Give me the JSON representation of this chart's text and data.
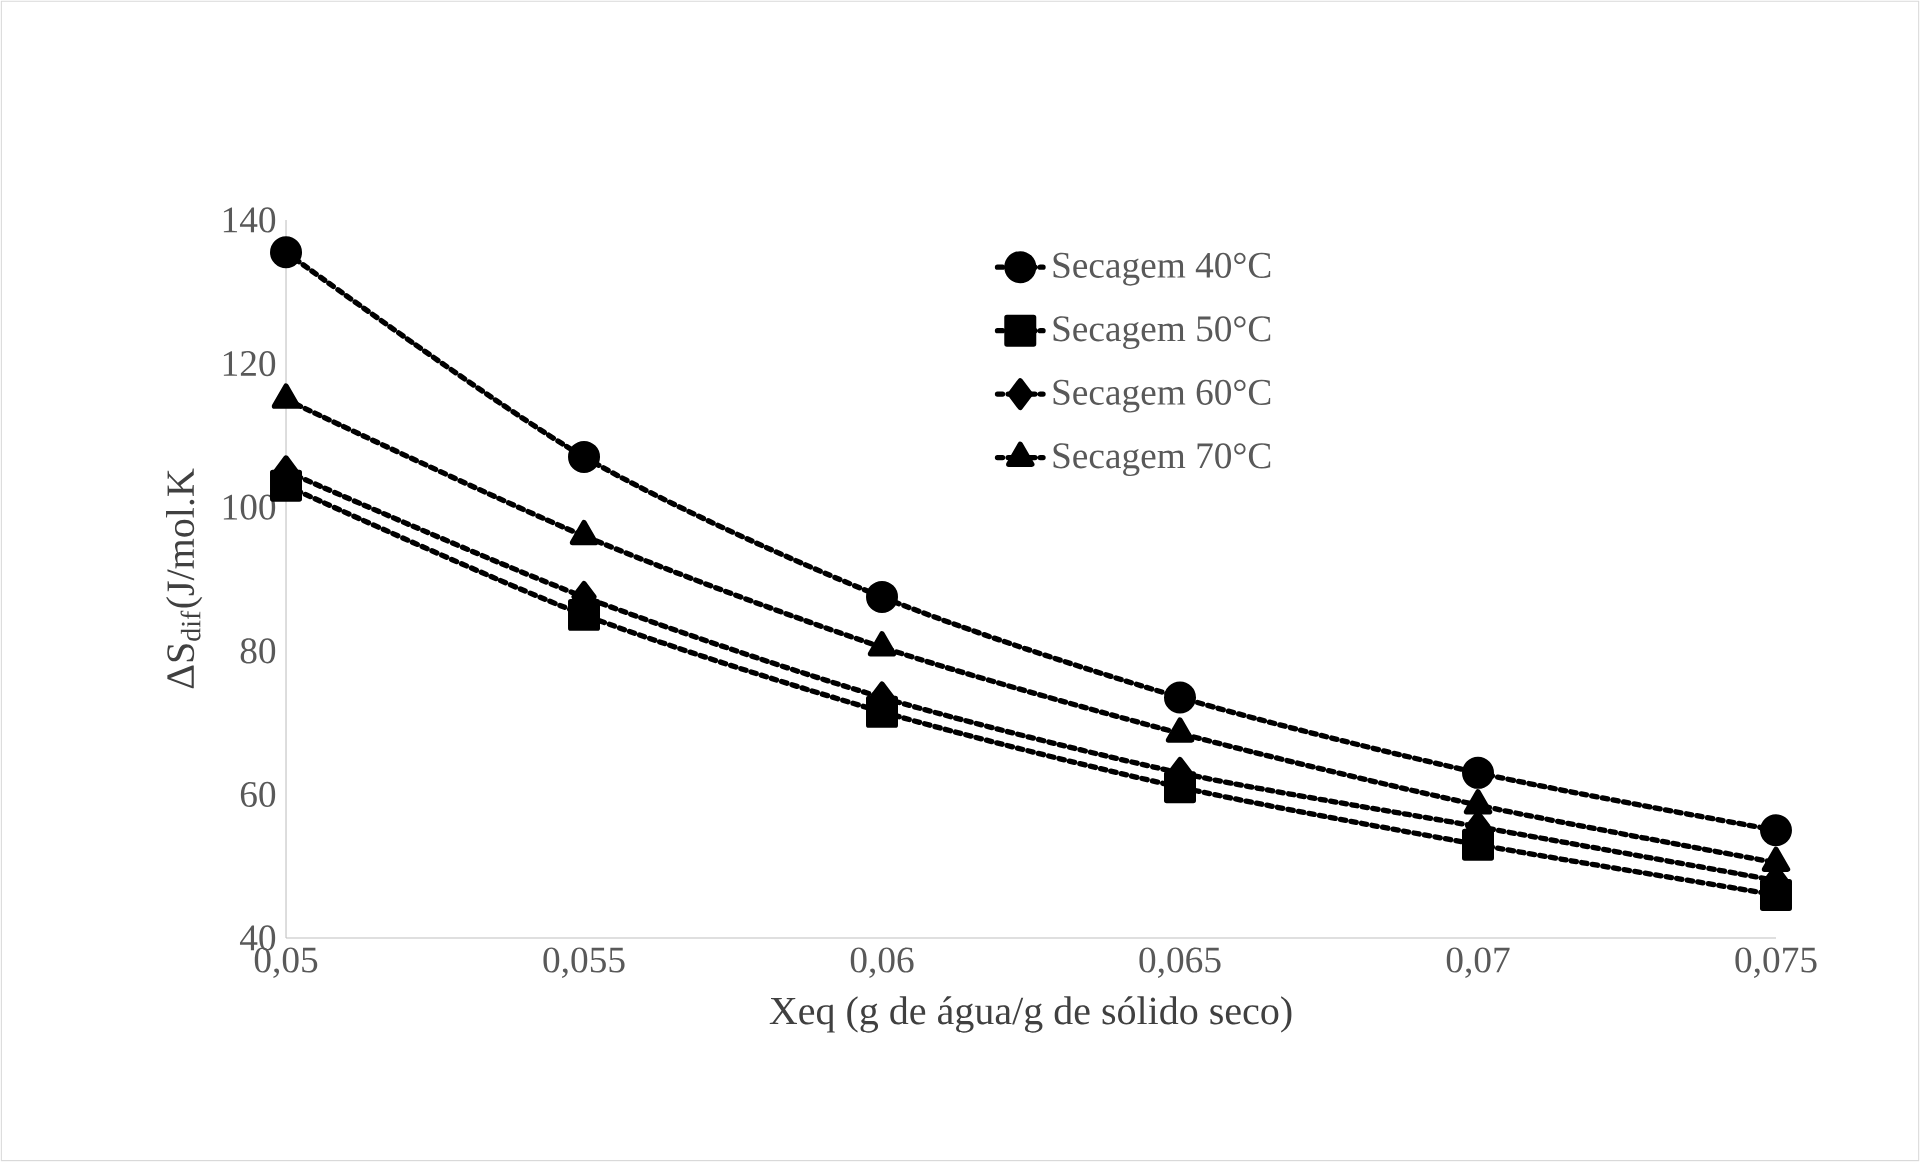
{
  "chart_data": {
    "type": "line",
    "xlabel": "Xeq (g de água/g de sólido seco)",
    "ylabel": "ΔS$_{dif}$(J/mol.K",
    "x": [
      0.05,
      0.055,
      0.06,
      0.065,
      0.07,
      0.075
    ],
    "series": [
      {
        "name": "Secagem 40°C",
        "color": "#000000",
        "marker": "circle",
        "values": [
          135.5,
          107,
          87.5,
          73.5,
          63,
          55
        ]
      },
      {
        "name": "Secagem 50°C",
        "color": "#000000",
        "marker": "square",
        "values": [
          103,
          85,
          71.5,
          61,
          53,
          46
        ]
      },
      {
        "name": "Secagem 60°C",
        "color": "#000000",
        "marker": "diamond",
        "values": [
          105,
          87.5,
          73.5,
          63,
          55.5,
          48
        ]
      },
      {
        "name": "Secagem 70°C",
        "color": "#000000",
        "marker": "triangle",
        "values": [
          115,
          96,
          80.5,
          68.5,
          58.5,
          50.5
        ]
      }
    ],
    "xlim": [
      0.05,
      0.075
    ],
    "xticks": [
      {
        "value": 0.05,
        "label": "0,05"
      },
      {
        "value": 0.055,
        "label": "0,055"
      },
      {
        "value": 0.06,
        "label": "0,06"
      },
      {
        "value": 0.065,
        "label": "0,065"
      },
      {
        "value": 0.07,
        "label": "0,07"
      },
      {
        "value": 0.075,
        "label": "0,075"
      }
    ],
    "ylim": [
      40,
      140
    ],
    "yticks": [
      40,
      60,
      80,
      100,
      120,
      140
    ],
    "grid": false,
    "legend": "top right",
    "line_style": "dotted"
  }
}
